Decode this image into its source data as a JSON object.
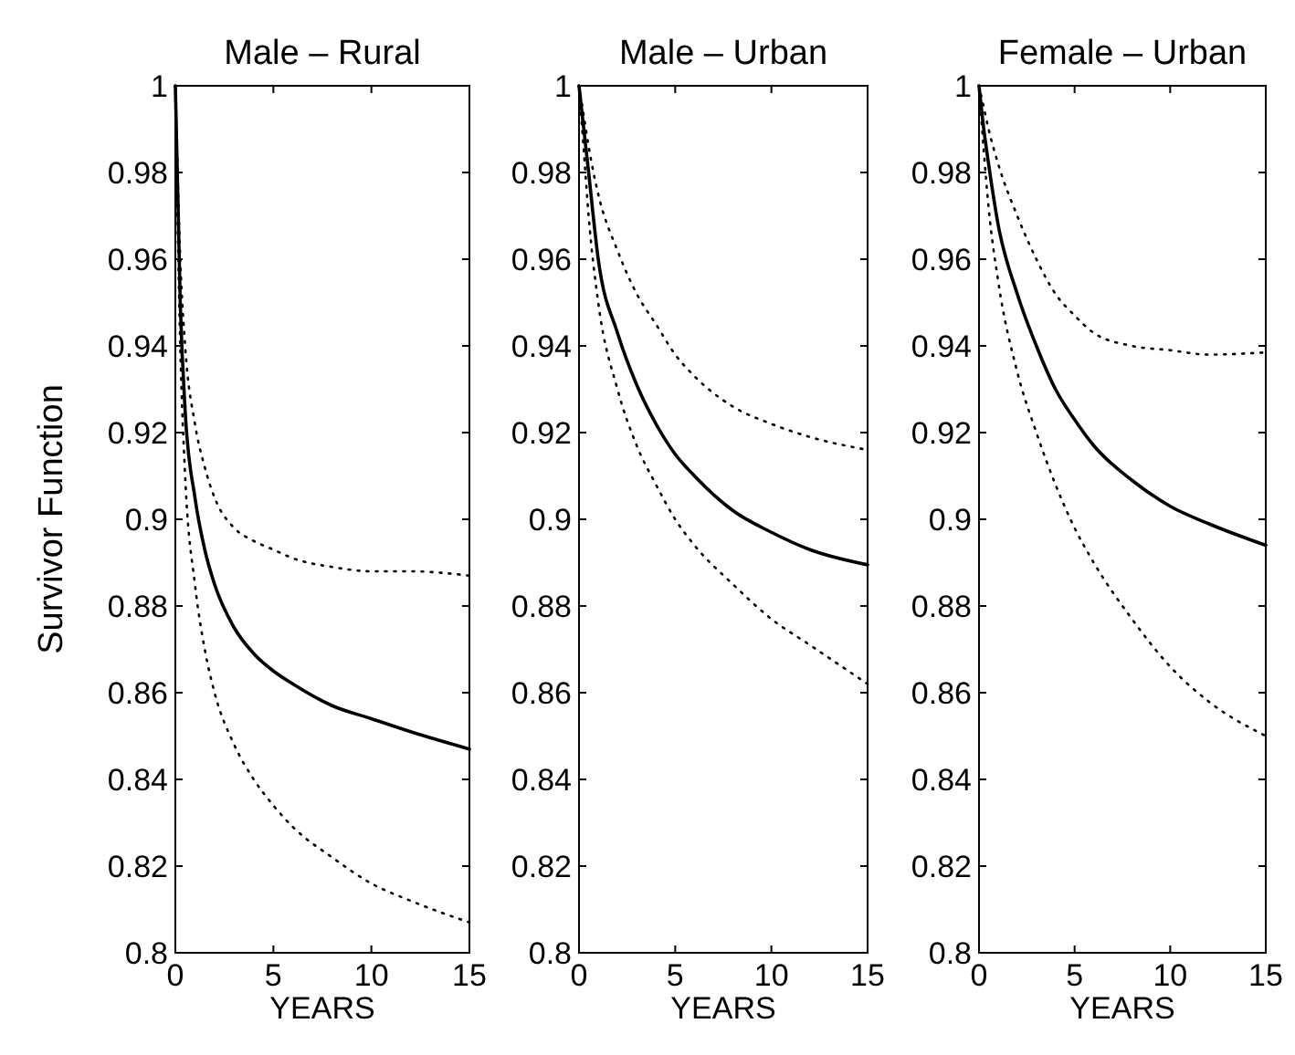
{
  "chart_data": [
    {
      "type": "line",
      "title": "Male – Rural",
      "xlabel": "YEARS",
      "ylabel": "Survivor Function",
      "xlim": [
        0,
        15
      ],
      "xticks": [
        0,
        5,
        10,
        15
      ],
      "ylim": [
        0.8,
        1
      ],
      "yticks": [
        0.8,
        0.82,
        0.84,
        0.86,
        0.88,
        0.9,
        0.92,
        0.94,
        0.96,
        0.98,
        1
      ],
      "grid": false,
      "marker": "none",
      "x": [
        0,
        0.25,
        0.5,
        1,
        1.5,
        2,
        3,
        4,
        5,
        6,
        8,
        10,
        12,
        15
      ],
      "series": [
        {
          "color": "#000000",
          "line_style": "solid",
          "values": [
            1,
            0.95,
            0.925,
            0.905,
            0.893,
            0.885,
            0.875,
            0.869,
            0.865,
            0.862,
            0.857,
            0.854,
            0.851,
            0.847
          ]
        },
        {
          "color": "#000000",
          "line_style": "dotted",
          "values": [
            1,
            0.96,
            0.94,
            0.922,
            0.912,
            0.905,
            0.898,
            0.895,
            0.893,
            0.891,
            0.889,
            0.888,
            0.888,
            0.887
          ]
        },
        {
          "color": "#000000",
          "line_style": "dotted",
          "values": [
            1,
            0.94,
            0.91,
            0.885,
            0.87,
            0.86,
            0.848,
            0.84,
            0.834,
            0.829,
            0.822,
            0.816,
            0.812,
            0.807
          ]
        }
      ]
    },
    {
      "type": "line",
      "title": "Male – Urban",
      "xlabel": "YEARS",
      "xlim": [
        0,
        15
      ],
      "xticks": [
        0,
        5,
        10,
        15
      ],
      "ylim": [
        0.8,
        1
      ],
      "yticks": [
        0.8,
        0.82,
        0.84,
        0.86,
        0.88,
        0.9,
        0.92,
        0.94,
        0.96,
        0.98,
        1
      ],
      "grid": false,
      "marker": "none",
      "x": [
        0,
        0.25,
        0.5,
        1,
        2,
        3,
        4,
        5,
        6,
        8,
        10,
        12,
        15
      ],
      "series": [
        {
          "color": "#000000",
          "line_style": "solid",
          "values": [
            1,
            0.99,
            0.98,
            0.96,
            0.943,
            0.931,
            0.922,
            0.915,
            0.91,
            0.902,
            0.897,
            0.893,
            0.8895
          ]
        },
        {
          "color": "#000000",
          "line_style": "dotted",
          "values": [
            1,
            0.993,
            0.986,
            0.975,
            0.962,
            0.952,
            0.945,
            0.938,
            0.933,
            0.926,
            0.922,
            0.919,
            0.916
          ]
        },
        {
          "color": "#000000",
          "line_style": "dotted",
          "values": [
            1,
            0.985,
            0.97,
            0.95,
            0.93,
            0.917,
            0.908,
            0.9,
            0.894,
            0.885,
            0.877,
            0.871,
            0.862
          ]
        }
      ]
    },
    {
      "type": "line",
      "title": "Female – Urban",
      "xlabel": "YEARS",
      "xlim": [
        0,
        15
      ],
      "xticks": [
        0,
        5,
        10,
        15
      ],
      "ylim": [
        0.8,
        1
      ],
      "yticks": [
        0.8,
        0.82,
        0.84,
        0.86,
        0.88,
        0.9,
        0.92,
        0.94,
        0.96,
        0.98,
        1
      ],
      "grid": false,
      "marker": "none",
      "x": [
        0,
        0.25,
        0.5,
        1,
        2,
        3,
        4,
        5,
        6,
        8,
        10,
        12,
        15
      ],
      "series": [
        {
          "color": "#000000",
          "line_style": "solid",
          "values": [
            1,
            0.99,
            0.982,
            0.968,
            0.952,
            0.94,
            0.93,
            0.923,
            0.917,
            0.909,
            0.903,
            0.899,
            0.894
          ]
        },
        {
          "color": "#000000",
          "line_style": "dotted",
          "values": [
            1,
            0.995,
            0.99,
            0.982,
            0.97,
            0.96,
            0.952,
            0.947,
            0.943,
            0.94,
            0.939,
            0.938,
            0.9385
          ]
        },
        {
          "color": "#000000",
          "line_style": "dotted",
          "values": [
            1,
            0.985,
            0.972,
            0.955,
            0.934,
            0.92,
            0.908,
            0.898,
            0.89,
            0.877,
            0.866,
            0.858,
            0.85
          ]
        }
      ]
    }
  ]
}
